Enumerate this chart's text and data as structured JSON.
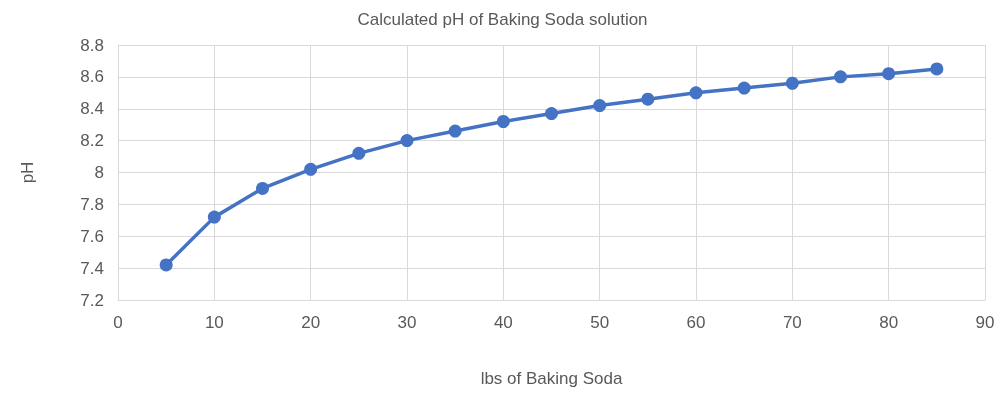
{
  "chart_data": {
    "type": "line",
    "title": "Calculated pH of Baking Soda solution",
    "xlabel": "lbs of Baking Soda",
    "ylabel": "pH",
    "x": [
      5,
      10,
      15,
      20,
      25,
      30,
      35,
      40,
      45,
      50,
      55,
      60,
      65,
      70,
      75,
      80,
      85
    ],
    "series": [
      {
        "color": "#4472c4",
        "values": [
          7.42,
          7.72,
          7.9,
          8.02,
          8.12,
          8.2,
          8.26,
          8.32,
          8.37,
          8.42,
          8.46,
          8.5,
          8.53,
          8.56,
          8.6,
          8.62,
          8.65
        ]
      }
    ],
    "xlim": [
      0,
      90
    ],
    "xticks": [
      0,
      10,
      20,
      30,
      40,
      50,
      60,
      70,
      80,
      90
    ],
    "ylim": [
      7.2,
      8.8
    ],
    "yticks": [
      7.2,
      7.4,
      7.6,
      7.8,
      8,
      8.2,
      8.4,
      8.6,
      8.8
    ],
    "grid": true,
    "marker": "circle",
    "line_style": "solid"
  }
}
